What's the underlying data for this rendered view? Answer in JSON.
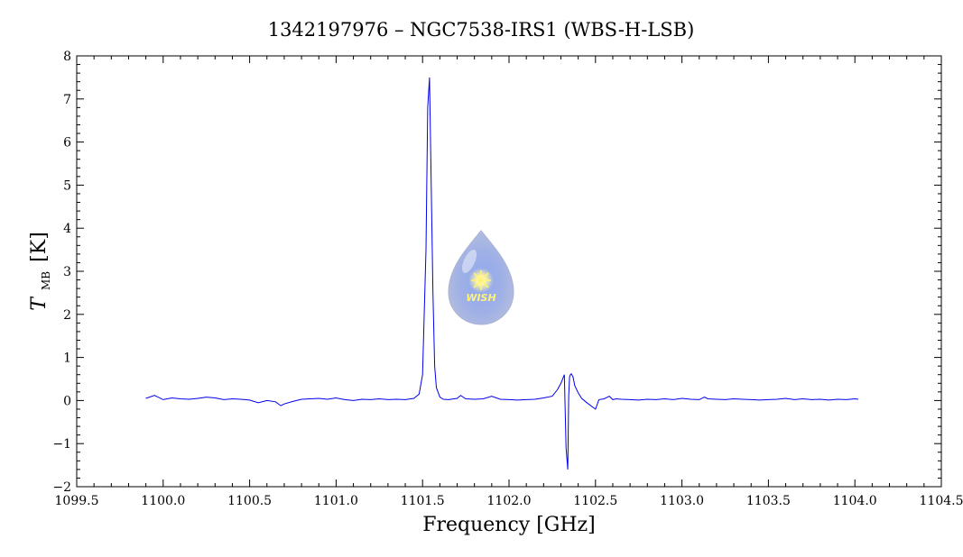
{
  "chart_data": {
    "type": "line",
    "title": "1342197976 – NGC7538-IRS1 (WBS-H-LSB)",
    "xlabel": "Frequency [GHz]",
    "ylabel": {
      "symbol": "T",
      "subscript": "MB",
      "unit": "[K]"
    },
    "xlim": [
      1099.5,
      1104.5
    ],
    "ylim": [
      -2,
      8
    ],
    "x_ticks": [
      1099.5,
      1100.0,
      1100.5,
      1101.0,
      1101.5,
      1102.0,
      1102.5,
      1103.0,
      1103.5,
      1104.0,
      1104.5
    ],
    "x_tick_labels": [
      "1099.5",
      "1100.0",
      "1100.5",
      "1101.0",
      "1101.5",
      "1102.0",
      "1102.5",
      "1103.0",
      "1103.5",
      "1104.0",
      "1104.5"
    ],
    "y_ticks": [
      -2,
      -1,
      0,
      1,
      2,
      3,
      4,
      5,
      6,
      7,
      8
    ],
    "y_tick_labels": [
      "−2",
      "−1",
      "0",
      "1",
      "2",
      "3",
      "4",
      "5",
      "6",
      "7",
      "8"
    ],
    "grid": false,
    "logo": {
      "text": "WISH"
    },
    "series": [
      {
        "color": "#0000ee",
        "x": [
          1099.9,
          1099.95,
          1100.0,
          1100.05,
          1100.1,
          1100.15,
          1100.2,
          1100.25,
          1100.3,
          1100.35,
          1100.4,
          1100.45,
          1100.5,
          1100.55,
          1100.6,
          1100.65,
          1100.68,
          1100.7,
          1100.75,
          1100.8,
          1100.85,
          1100.9,
          1100.95,
          1101.0,
          1101.05,
          1101.1,
          1101.15,
          1101.2,
          1101.25,
          1101.3,
          1101.35,
          1101.4,
          1101.45,
          1101.48,
          1101.5,
          1101.52,
          1101.53,
          1101.54,
          1101.55,
          1101.56,
          1101.57,
          1101.58,
          1101.6,
          1101.62,
          1101.65,
          1101.7,
          1101.72,
          1101.75,
          1101.8,
          1101.85,
          1101.9,
          1101.95,
          1102.0,
          1102.05,
          1102.1,
          1102.15,
          1102.2,
          1102.25,
          1102.28,
          1102.3,
          1102.32,
          1102.33,
          1102.34,
          1102.345,
          1102.35,
          1102.355,
          1102.36,
          1102.37,
          1102.38,
          1102.4,
          1102.42,
          1102.45,
          1102.5,
          1102.52,
          1102.55,
          1102.58,
          1102.6,
          1102.62,
          1102.65,
          1102.7,
          1102.75,
          1102.8,
          1102.85,
          1102.9,
          1102.95,
          1103.0,
          1103.05,
          1103.1,
          1103.13,
          1103.15,
          1103.2,
          1103.25,
          1103.3,
          1103.35,
          1103.4,
          1103.45,
          1103.5,
          1103.55,
          1103.6,
          1103.65,
          1103.7,
          1103.75,
          1103.8,
          1103.85,
          1103.9,
          1103.95,
          1104.0,
          1104.02
        ],
        "y": [
          0.05,
          0.12,
          0.02,
          0.06,
          0.04,
          0.03,
          0.05,
          0.08,
          0.06,
          0.02,
          0.04,
          0.03,
          0.01,
          -0.05,
          0.0,
          -0.03,
          -0.12,
          -0.08,
          -0.02,
          0.03,
          0.04,
          0.05,
          0.03,
          0.06,
          0.02,
          0.0,
          0.03,
          0.02,
          0.04,
          0.02,
          0.03,
          0.02,
          0.05,
          0.15,
          0.6,
          3.5,
          6.8,
          7.5,
          5.0,
          2.5,
          0.8,
          0.3,
          0.08,
          0.03,
          0.02,
          0.05,
          0.12,
          0.04,
          0.03,
          0.04,
          0.1,
          0.03,
          0.02,
          0.01,
          0.02,
          0.03,
          0.06,
          0.1,
          0.25,
          0.4,
          0.6,
          -1.1,
          -1.6,
          0.1,
          0.55,
          0.6,
          0.62,
          0.55,
          0.35,
          0.18,
          0.05,
          -0.05,
          -0.2,
          0.02,
          0.04,
          0.1,
          0.02,
          0.04,
          0.03,
          0.02,
          0.01,
          0.03,
          0.02,
          0.04,
          0.02,
          0.05,
          0.03,
          0.02,
          0.08,
          0.04,
          0.03,
          0.02,
          0.04,
          0.03,
          0.02,
          0.01,
          0.02,
          0.03,
          0.05,
          0.02,
          0.04,
          0.02,
          0.03,
          0.01,
          0.03,
          0.02,
          0.04,
          0.03
        ]
      }
    ]
  }
}
